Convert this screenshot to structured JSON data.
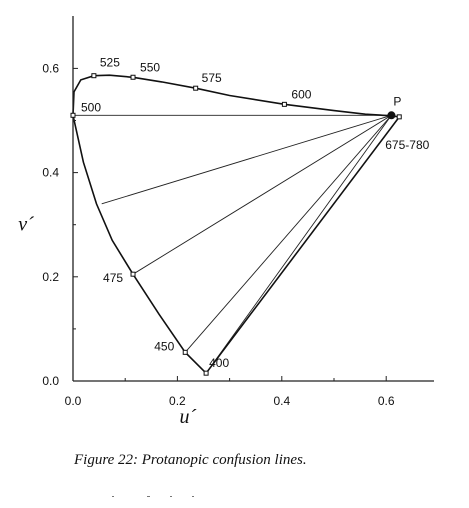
{
  "chart_data": {
    "type": "line",
    "title": "",
    "caption": "Figure 22:  Protanopic confusion lines.",
    "xlabel": "u´",
    "ylabel": "v´",
    "xlim": [
      0.0,
      0.7
    ],
    "ylim": [
      0.0,
      0.7
    ],
    "xticks": [
      "0.0",
      "0.2",
      "0.4",
      "0.6"
    ],
    "yticks": [
      "0.0",
      "0.2",
      "0.4",
      "0.6"
    ],
    "grid": false,
    "locus_curve": [
      [
        0.0,
        0.51
      ],
      [
        0.002,
        0.555
      ],
      [
        0.015,
        0.578
      ],
      [
        0.04,
        0.586
      ],
      [
        0.07,
        0.587
      ],
      [
        0.115,
        0.583
      ],
      [
        0.17,
        0.574
      ],
      [
        0.235,
        0.562
      ],
      [
        0.3,
        0.548
      ],
      [
        0.405,
        0.531
      ],
      [
        0.5,
        0.519
      ],
      [
        0.56,
        0.512
      ],
      [
        0.61,
        0.509
      ],
      [
        0.625,
        0.507
      ]
    ],
    "lower_boundary": [
      [
        0.0,
        0.51
      ],
      [
        0.02,
        0.42
      ],
      [
        0.045,
        0.34
      ],
      [
        0.075,
        0.27
      ],
      [
        0.115,
        0.205
      ],
      [
        0.165,
        0.128
      ],
      [
        0.215,
        0.055
      ],
      [
        0.255,
        0.015
      ]
    ],
    "purple_line": [
      [
        0.255,
        0.015
      ],
      [
        0.625,
        0.507
      ]
    ],
    "wavelength_markers": [
      {
        "label": "400",
        "u": 0.255,
        "v": 0.015
      },
      {
        "label": "450",
        "u": 0.215,
        "v": 0.055
      },
      {
        "label": "475",
        "u": 0.115,
        "v": 0.205
      },
      {
        "label": "500",
        "u": 0.0,
        "v": 0.51
      },
      {
        "label": "525",
        "u": 0.04,
        "v": 0.586
      },
      {
        "label": "550",
        "u": 0.115,
        "v": 0.583
      },
      {
        "label": "575",
        "u": 0.235,
        "v": 0.562
      },
      {
        "label": "600",
        "u": 0.405,
        "v": 0.531
      },
      {
        "label": "675-780",
        "u": 0.625,
        "v": 0.507
      }
    ],
    "copunctal_point": {
      "label": "P",
      "u": 0.61,
      "v": 0.51
    },
    "confusion_lines": [
      {
        "from": [
          0.61,
          0.51
        ],
        "to": [
          0.0,
          0.51
        ]
      },
      {
        "from": [
          0.61,
          0.51
        ],
        "to": [
          0.055,
          0.34
        ]
      },
      {
        "from": [
          0.61,
          0.51
        ],
        "to": [
          0.115,
          0.205
        ]
      },
      {
        "from": [
          0.61,
          0.51
        ],
        "to": [
          0.215,
          0.055
        ]
      },
      {
        "from": [
          0.61,
          0.51
        ],
        "to": [
          0.255,
          0.015
        ]
      }
    ]
  }
}
